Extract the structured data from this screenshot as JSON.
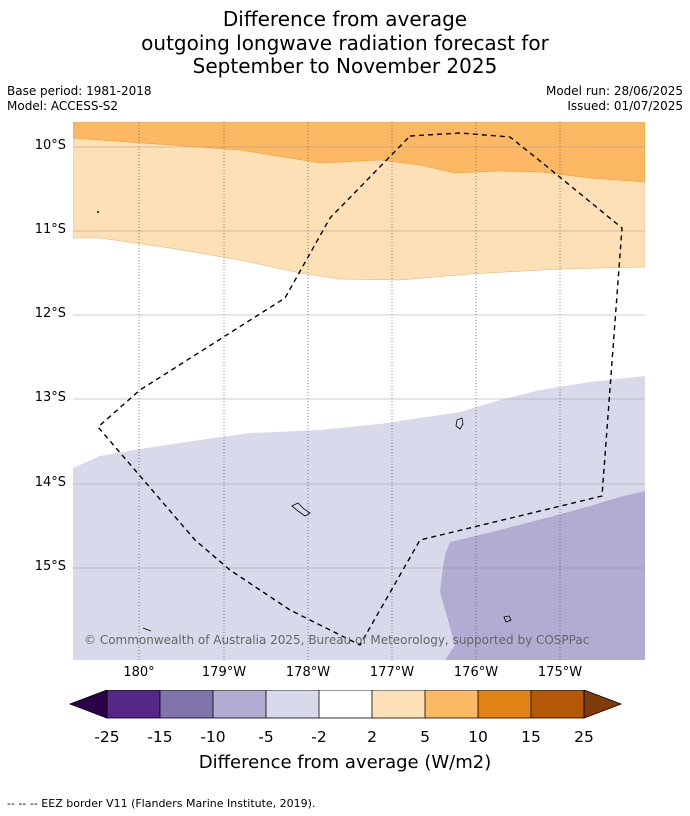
{
  "title": {
    "line1": "Difference from average",
    "line2": "outgoing longwave radiation forecast for",
    "line3": "September to November 2025"
  },
  "meta_left": {
    "base_period": "Base period: 1981-2018",
    "model": "Model: ACCESS-S2"
  },
  "meta_right": {
    "model_run": "Model run: 28/06/2025",
    "issued": "Issued: 01/07/2025"
  },
  "map": {
    "lat_labels": [
      "10°S",
      "11°S",
      "12°S",
      "13°S",
      "14°S",
      "15°S"
    ],
    "lon_labels": [
      "180°",
      "179°W",
      "178°W",
      "177°W",
      "176°W",
      "175°W"
    ],
    "copyright": "© Commonwealth of Australia 2025, Bureau of Meteorology, supported by COSPPac",
    "colors": {
      "band_5_10": "#fdb863",
      "band_2_5": "#fee0b6",
      "band_neutral": "#ffffff",
      "band_m5_m2": "#d8daeb",
      "band_m10_m5": "#b2abd2"
    }
  },
  "colorbar": {
    "labels": [
      "-25",
      "-15",
      "-10",
      "-5",
      "-2",
      "2",
      "5",
      "10",
      "15",
      "25"
    ],
    "colors": [
      "#2d004b",
      "#542788",
      "#8073ac",
      "#b2abd2",
      "#d8daeb",
      "#ffffff",
      "#fee0b6",
      "#fdb863",
      "#e08214",
      "#b35806",
      "#7f3b08"
    ],
    "title": "Difference from average (W/m2)"
  },
  "footnote": "--  --  -- EEZ border V11 (Flanders Marine Institute, 2019)."
}
